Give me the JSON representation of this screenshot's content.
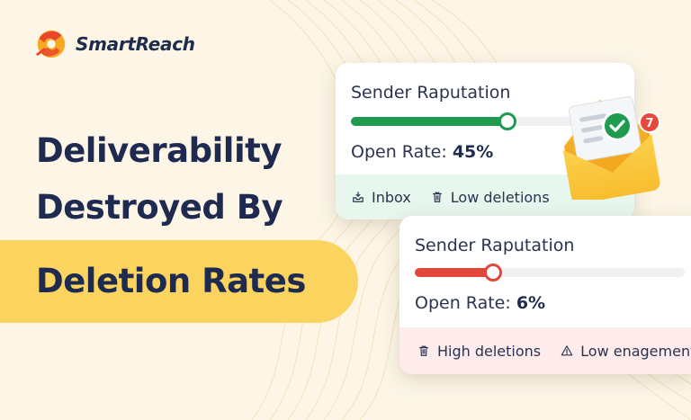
{
  "brand": {
    "name": "SmartReach",
    "accent": "#fbd460",
    "logo_colors": [
      "#f7a823",
      "#e8472b"
    ]
  },
  "headline": {
    "line1": "Deliverability",
    "line2": "Destroyed By",
    "highlight": "Deletion Rates"
  },
  "card_good": {
    "title": "Sender Raputation",
    "bar_fraction": 0.58,
    "bar_color": "#1f9a4e",
    "open_rate_label": "Open Rate:",
    "open_rate_value": "45%",
    "footer": [
      {
        "icon": "inbox-icon",
        "label": "Inbox"
      },
      {
        "icon": "trash-icon",
        "label": "Low deletions"
      }
    ]
  },
  "card_bad": {
    "title": "Sender Raputation",
    "bar_fraction": 0.29,
    "bar_color": "#e2473c",
    "open_rate_label": "Open Rate:",
    "open_rate_value": "6%",
    "footer": [
      {
        "icon": "trash-icon",
        "label": "High deletions"
      },
      {
        "icon": "warning-icon",
        "label": "Low enagement"
      }
    ]
  },
  "envelope": {
    "badge_count": "7",
    "check_color": "#1f9a4e",
    "badge_color": "#e8473b"
  }
}
